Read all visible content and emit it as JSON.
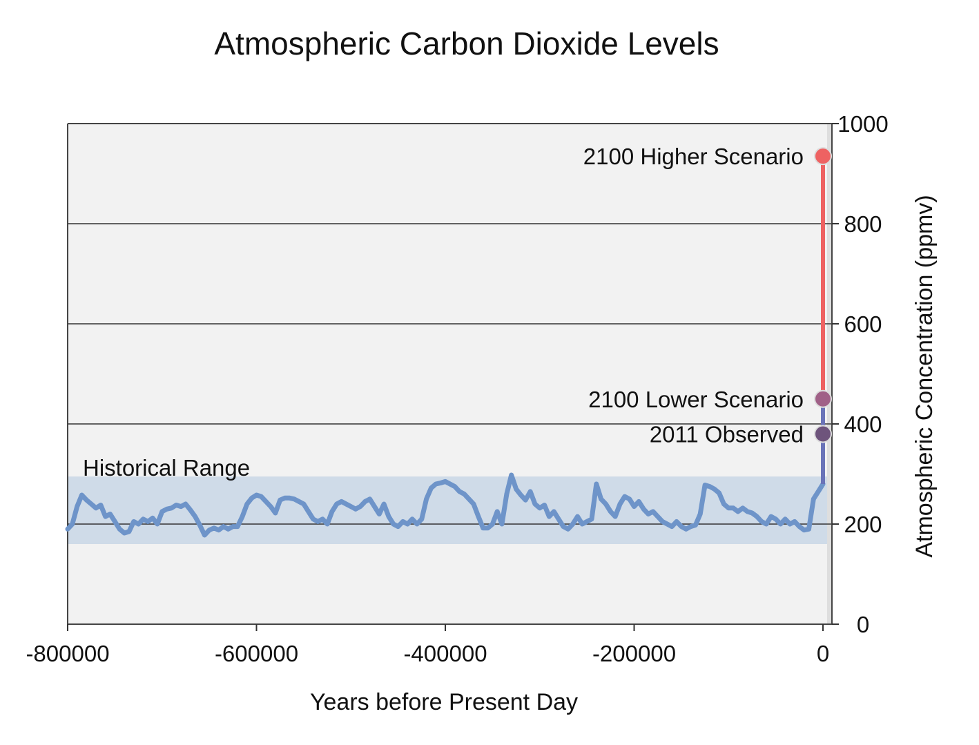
{
  "chart_data": {
    "type": "line",
    "title": "Atmospheric Carbon Dioxide Levels",
    "xlabel": "Years before Present Day",
    "ylabel": "Atmospheric Concentration (ppmv)",
    "xlim": [
      -800000,
      0
    ],
    "ylim": [
      0,
      1000
    ],
    "x_ticks": [
      "-800000",
      "-600000",
      "-400000",
      "-200000",
      "0"
    ],
    "x_tick_values": [
      -800000,
      -600000,
      -400000,
      -200000,
      0
    ],
    "y_ticks": [
      "0",
      "200",
      "400",
      "600",
      "800",
      "1000"
    ],
    "y_tick_values": [
      0,
      200,
      400,
      600,
      800,
      1000
    ],
    "y_axis_position": "right",
    "grid": true,
    "historical_range": {
      "label": "Historical Range",
      "min": 160,
      "max": 295
    },
    "series": [
      {
        "values": [
          [
            -800000,
            190
          ],
          [
            -795000,
            200
          ],
          [
            -790000,
            235
          ],
          [
            -785000,
            258
          ],
          [
            -780000,
            248
          ],
          [
            -775000,
            240
          ],
          [
            -770000,
            232
          ],
          [
            -765000,
            238
          ],
          [
            -760000,
            215
          ],
          [
            -755000,
            220
          ],
          [
            -750000,
            205
          ],
          [
            -745000,
            190
          ],
          [
            -740000,
            182
          ],
          [
            -735000,
            185
          ],
          [
            -730000,
            205
          ],
          [
            -725000,
            200
          ],
          [
            -720000,
            210
          ],
          [
            -715000,
            205
          ],
          [
            -710000,
            212
          ],
          [
            -705000,
            200
          ],
          [
            -700000,
            225
          ],
          [
            -695000,
            230
          ],
          [
            -690000,
            232
          ],
          [
            -685000,
            238
          ],
          [
            -680000,
            235
          ],
          [
            -675000,
            240
          ],
          [
            -670000,
            228
          ],
          [
            -665000,
            215
          ],
          [
            -660000,
            198
          ],
          [
            -655000,
            178
          ],
          [
            -650000,
            188
          ],
          [
            -645000,
            192
          ],
          [
            -640000,
            188
          ],
          [
            -635000,
            195
          ],
          [
            -630000,
            190
          ],
          [
            -625000,
            195
          ],
          [
            -620000,
            195
          ],
          [
            -615000,
            215
          ],
          [
            -610000,
            240
          ],
          [
            -605000,
            252
          ],
          [
            -600000,
            258
          ],
          [
            -595000,
            255
          ],
          [
            -590000,
            245
          ],
          [
            -585000,
            235
          ],
          [
            -580000,
            222
          ],
          [
            -575000,
            248
          ],
          [
            -570000,
            252
          ],
          [
            -565000,
            252
          ],
          [
            -560000,
            250
          ],
          [
            -555000,
            245
          ],
          [
            -550000,
            240
          ],
          [
            -545000,
            225
          ],
          [
            -540000,
            210
          ],
          [
            -535000,
            205
          ],
          [
            -530000,
            210
          ],
          [
            -525000,
            200
          ],
          [
            -520000,
            225
          ],
          [
            -515000,
            240
          ],
          [
            -510000,
            245
          ],
          [
            -505000,
            240
          ],
          [
            -500000,
            235
          ],
          [
            -495000,
            230
          ],
          [
            -490000,
            235
          ],
          [
            -485000,
            245
          ],
          [
            -480000,
            250
          ],
          [
            -475000,
            235
          ],
          [
            -470000,
            220
          ],
          [
            -465000,
            240
          ],
          [
            -460000,
            215
          ],
          [
            -455000,
            200
          ],
          [
            -450000,
            195
          ],
          [
            -445000,
            205
          ],
          [
            -440000,
            200
          ],
          [
            -435000,
            210
          ],
          [
            -430000,
            200
          ],
          [
            -425000,
            210
          ],
          [
            -420000,
            250
          ],
          [
            -415000,
            272
          ],
          [
            -410000,
            280
          ],
          [
            -405000,
            282
          ],
          [
            -400000,
            285
          ],
          [
            -395000,
            280
          ],
          [
            -390000,
            275
          ],
          [
            -385000,
            265
          ],
          [
            -380000,
            260
          ],
          [
            -375000,
            250
          ],
          [
            -370000,
            240
          ],
          [
            -365000,
            215
          ],
          [
            -360000,
            192
          ],
          [
            -355000,
            192
          ],
          [
            -350000,
            200
          ],
          [
            -345000,
            225
          ],
          [
            -340000,
            200
          ],
          [
            -335000,
            260
          ],
          [
            -330000,
            298
          ],
          [
            -325000,
            270
          ],
          [
            -320000,
            258
          ],
          [
            -315000,
            248
          ],
          [
            -310000,
            265
          ],
          [
            -305000,
            240
          ],
          [
            -300000,
            232
          ],
          [
            -295000,
            238
          ],
          [
            -290000,
            215
          ],
          [
            -285000,
            225
          ],
          [
            -280000,
            210
          ],
          [
            -275000,
            195
          ],
          [
            -270000,
            190
          ],
          [
            -265000,
            200
          ],
          [
            -260000,
            215
          ],
          [
            -255000,
            200
          ],
          [
            -250000,
            205
          ],
          [
            -245000,
            210
          ],
          [
            -240000,
            280
          ],
          [
            -235000,
            250
          ],
          [
            -230000,
            240
          ],
          [
            -225000,
            225
          ],
          [
            -220000,
            215
          ],
          [
            -215000,
            240
          ],
          [
            -210000,
            255
          ],
          [
            -205000,
            250
          ],
          [
            -200000,
            235
          ],
          [
            -195000,
            245
          ],
          [
            -190000,
            230
          ],
          [
            -185000,
            220
          ],
          [
            -180000,
            225
          ],
          [
            -175000,
            215
          ],
          [
            -170000,
            205
          ],
          [
            -165000,
            200
          ],
          [
            -160000,
            195
          ],
          [
            -155000,
            205
          ],
          [
            -150000,
            195
          ],
          [
            -145000,
            190
          ],
          [
            -140000,
            195
          ],
          [
            -135000,
            198
          ],
          [
            -130000,
            220
          ],
          [
            -125000,
            278
          ],
          [
            -120000,
            275
          ],
          [
            -115000,
            270
          ],
          [
            -110000,
            262
          ],
          [
            -105000,
            240
          ],
          [
            -100000,
            232
          ],
          [
            -95000,
            232
          ],
          [
            -90000,
            225
          ],
          [
            -85000,
            232
          ],
          [
            -80000,
            225
          ],
          [
            -75000,
            222
          ],
          [
            -70000,
            215
          ],
          [
            -65000,
            205
          ],
          [
            -60000,
            200
          ],
          [
            -55000,
            215
          ],
          [
            -50000,
            210
          ],
          [
            -45000,
            200
          ],
          [
            -40000,
            210
          ],
          [
            -35000,
            200
          ],
          [
            -30000,
            205
          ],
          [
            -25000,
            195
          ],
          [
            -20000,
            188
          ],
          [
            -15000,
            190
          ],
          [
            -10000,
            250
          ],
          [
            -5000,
            265
          ],
          [
            0,
            280
          ]
        ]
      }
    ],
    "points": [
      {
        "label": "2100 Higher Scenario",
        "x": 0,
        "y": 935,
        "color": "#ee6262"
      },
      {
        "label": "2100 Lower Scenario",
        "x": 0,
        "y": 450,
        "color": "#a06087"
      },
      {
        "label": "2011 Observed",
        "x": 0,
        "y": 380,
        "color": "#6e547c"
      }
    ],
    "colors": {
      "plot_background": "#f2f2f2",
      "historical_band": "#cfdbe8",
      "historical_line": "#6e94c9",
      "projection_line": "#ee6262",
      "projection_low": "#6a73b8"
    }
  }
}
